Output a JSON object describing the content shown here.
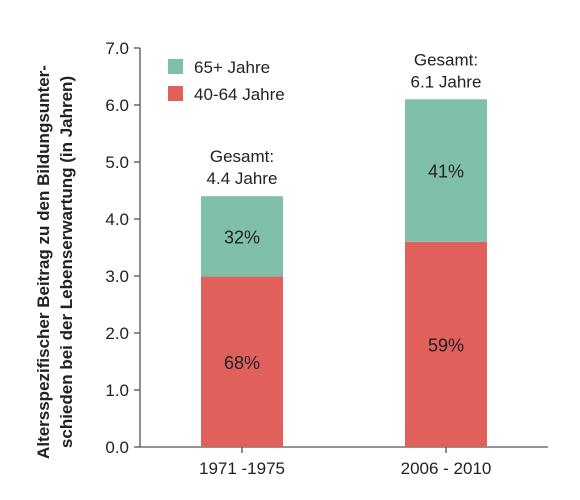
{
  "chart_data": {
    "type": "bar",
    "stacked": true,
    "categories": [
      "1971 -1975",
      "2006 - 2010"
    ],
    "series": [
      {
        "name": "40-64 Jahre",
        "color": "#e0605c",
        "values": [
          2.99,
          3.6
        ],
        "labels": [
          "68%",
          "59%"
        ]
      },
      {
        "name": "65+ Jahre",
        "color": "#7fbfa9",
        "values": [
          1.41,
          2.5
        ],
        "labels": [
          "32%",
          "41%"
        ]
      }
    ],
    "totals": [
      {
        "line1": "Gesamt:",
        "line2": "4.4 Jahre"
      },
      {
        "line1": "Gesamt:",
        "line2": "6.1 Jahre"
      }
    ],
    "ylabel_line1": "Altersspezifischer Beitrag zu den Bildungsunter-",
    "ylabel_line2": "schieden bei der Lebenserwartung (in Jahren)",
    "ylim": [
      0,
      7
    ],
    "yticks": [
      "0.0",
      "1.0",
      "2.0",
      "3.0",
      "4.0",
      "5.0",
      "6.0",
      "7.0"
    ],
    "legend": [
      {
        "label": "65+ Jahre",
        "color": "#7fbfa9"
      },
      {
        "label": "40-64 Jahre",
        "color": "#e0605c"
      }
    ],
    "legend_position": "top-left",
    "grid": false
  }
}
